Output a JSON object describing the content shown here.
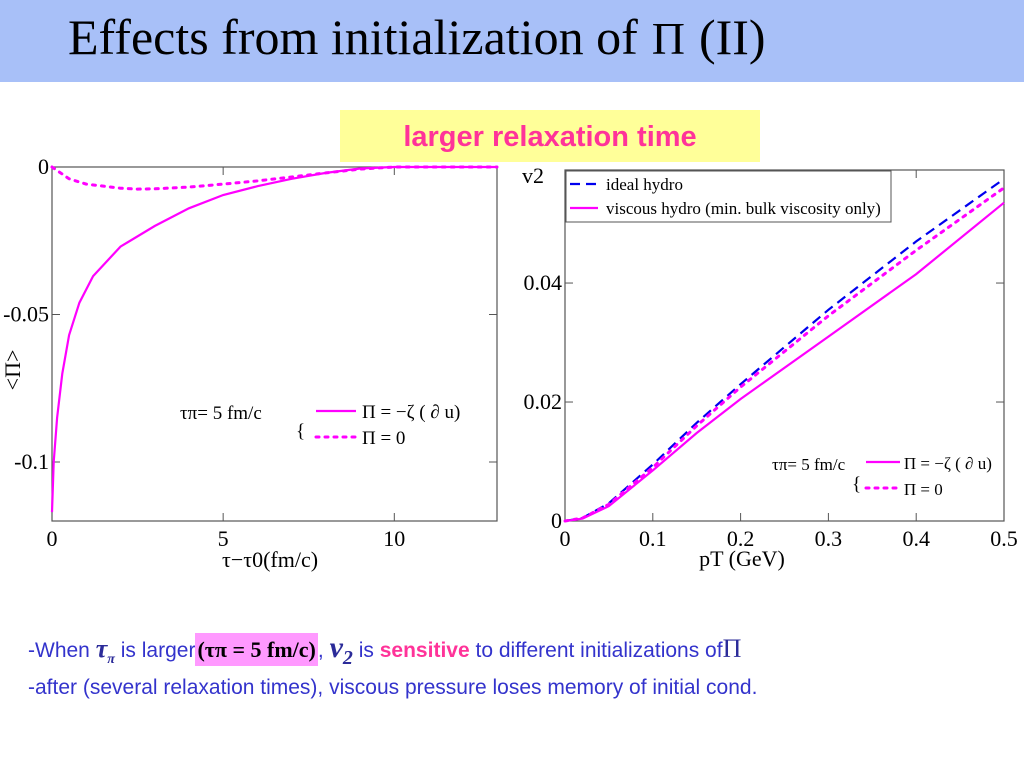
{
  "title": {
    "text": "Effects from initialization of",
    "symbol": "Π",
    "suffix": "(II)"
  },
  "note": "larger relaxation time",
  "bottom": {
    "line1": {
      "a": "-When",
      "tau": "τ",
      "tau_sub": "π",
      "b": "is larger",
      "highlight": "(τπ = 5  fm/c)",
      "comma": ",",
      "v": "v",
      "v_sub": "2",
      "c": "is",
      "sensitive": "sensitive",
      "d": "to different initializations of",
      "pi": "Π"
    },
    "line2": "-after (several relaxation times), viscous pressure loses memory of initial cond."
  },
  "chart_data": [
    {
      "type": "line",
      "xlabel": "τ−τ0(fm/c)",
      "ylabel": "<Π>",
      "xlim": [
        0,
        13
      ],
      "ylim": [
        -0.12,
        0
      ],
      "xticks": [
        {
          "v": 0,
          "label": "0"
        },
        {
          "v": 5,
          "label": "5"
        },
        {
          "v": 10,
          "label": "10"
        }
      ],
      "yticks": [
        {
          "v": 0,
          "label": "0"
        },
        {
          "v": -0.05,
          "label": "-0.05"
        },
        {
          "v": -0.1,
          "label": "-0.1"
        }
      ],
      "legend_title": "τπ= 5 fm/c",
      "series": [
        {
          "name": "Π = −ζ ( ∂ u)",
          "style": "solid",
          "color": "#ff00ff",
          "x": [
            0,
            0.05,
            0.15,
            0.3,
            0.5,
            0.8,
            1.2,
            2,
            3,
            4,
            5,
            6,
            7,
            8,
            9,
            10,
            13
          ],
          "y": [
            -0.117,
            -0.1,
            -0.085,
            -0.07,
            -0.057,
            -0.046,
            -0.037,
            -0.027,
            -0.02,
            -0.014,
            -0.0095,
            -0.0065,
            -0.004,
            -0.002,
            -0.0005,
            0,
            0
          ]
        },
        {
          "name": "Π = 0",
          "style": "dotted",
          "color": "#ff00ff",
          "x": [
            0,
            0.5,
            1,
            2,
            2.5,
            3,
            4,
            5,
            6,
            7,
            8,
            9,
            10,
            13
          ],
          "y": [
            0,
            -0.004,
            -0.0058,
            -0.0072,
            -0.0075,
            -0.0074,
            -0.0068,
            -0.0058,
            -0.0047,
            -0.0034,
            -0.002,
            -0.0007,
            0,
            0
          ]
        }
      ]
    },
    {
      "type": "line",
      "xlabel": "pT (GeV)",
      "ylabel": "v2",
      "xlim": [
        0,
        0.5
      ],
      "ylim": [
        0,
        0.059
      ],
      "xticks": [
        {
          "v": 0,
          "label": "0"
        },
        {
          "v": 0.1,
          "label": "0.1"
        },
        {
          "v": 0.2,
          "label": "0.2"
        },
        {
          "v": 0.3,
          "label": "0.3"
        },
        {
          "v": 0.4,
          "label": "0.4"
        },
        {
          "v": 0.5,
          "label": "0.5"
        }
      ],
      "yticks": [
        {
          "v": 0,
          "label": "0"
        },
        {
          "v": 0.02,
          "label": "0.02"
        },
        {
          "v": 0.04,
          "label": "0.04"
        }
      ],
      "legend": [
        "ideal hydro",
        "viscous hydro (min. bulk viscosity only)"
      ],
      "legend_title": "τπ= 5 fm/c",
      "series": [
        {
          "name": "ideal hydro",
          "style": "dashed",
          "color": "#0000ee",
          "x": [
            0,
            0.02,
            0.05,
            0.1,
            0.15,
            0.2,
            0.3,
            0.4,
            0.5
          ],
          "y": [
            0,
            0.0005,
            0.003,
            0.0095,
            0.0165,
            0.023,
            0.0355,
            0.047,
            0.0575
          ]
        },
        {
          "name": "Π = 0",
          "style": "dotted",
          "color": "#ff00ff",
          "x": [
            0,
            0.02,
            0.05,
            0.1,
            0.15,
            0.2,
            0.3,
            0.4,
            0.5
          ],
          "y": [
            0,
            0.0005,
            0.0028,
            0.009,
            0.016,
            0.0225,
            0.0345,
            0.0455,
            0.056
          ]
        },
        {
          "name": "Π = −ζ ( ∂ u)",
          "style": "solid",
          "color": "#ff00ff",
          "x": [
            0,
            0.02,
            0.05,
            0.1,
            0.15,
            0.2,
            0.3,
            0.4,
            0.5
          ],
          "y": [
            0,
            0.0004,
            0.0025,
            0.0085,
            0.0148,
            0.0205,
            0.031,
            0.0415,
            0.0535
          ]
        }
      ]
    }
  ]
}
